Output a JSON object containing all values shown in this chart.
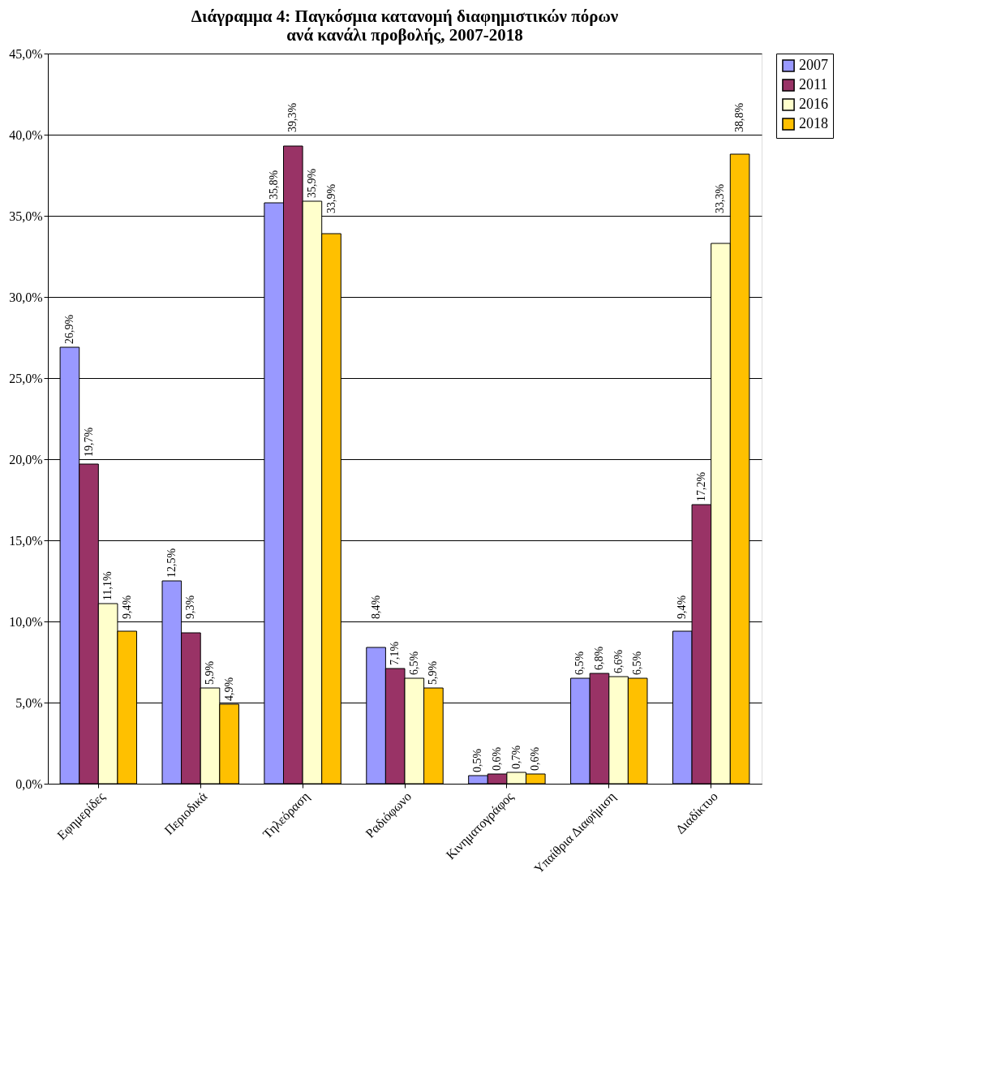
{
  "chart_data": {
    "type": "bar",
    "title": "Διάγραμμα 4: Παγκόσμια κατανομή διαφημιστικών πόρων\nανά κανάλι προβολής, 2007-2018",
    "categories": [
      "Εφημερίδες",
      "Περιοδικά",
      "Τηλεόραση",
      "Ραδιόφωνο",
      "Κινηματογράφος",
      "Υπαίθρια Διαφήμιση",
      "Διαδίκτυο"
    ],
    "series": [
      {
        "name": "2007",
        "color": "#9999ff",
        "values": [
          26.9,
          12.5,
          35.8,
          8.4,
          0.5,
          6.5,
          9.4
        ],
        "value_labels": [
          "26,9%",
          "12,5%",
          "35,8%",
          "8,4%",
          "0,5%",
          "6,5%",
          "9,4%"
        ]
      },
      {
        "name": "2011",
        "color": "#993366",
        "values": [
          19.7,
          9.3,
          39.3,
          7.1,
          0.6,
          6.8,
          17.2
        ],
        "value_labels": [
          "19,7%",
          "9,3%",
          "39,3%",
          "7,1%",
          "0,6%",
          "6,8%",
          "17,2%"
        ]
      },
      {
        "name": "2016",
        "color": "#ffffcc",
        "values": [
          11.1,
          5.9,
          35.9,
          6.5,
          0.7,
          6.6,
          33.3
        ],
        "value_labels": [
          "11,1%",
          "5,9%",
          "35,9%",
          "6,5%",
          "0,7%",
          "6,6%",
          "33,3%"
        ]
      },
      {
        "name": "2018",
        "color": "#ffc000",
        "values": [
          9.4,
          4.9,
          33.9,
          5.9,
          0.6,
          6.5,
          38.8
        ],
        "value_labels": [
          "9,4%",
          "4,9%",
          "33,9%",
          "5,9%",
          "0,6%",
          "6,5%",
          "38,8%"
        ]
      }
    ],
    "ylim": [
      0,
      45
    ],
    "yticks": [
      {
        "value": 0,
        "label": "0,0%"
      },
      {
        "value": 5,
        "label": "5,0%"
      },
      {
        "value": 10,
        "label": "10,0%"
      },
      {
        "value": 15,
        "label": "15,0%"
      },
      {
        "value": 20,
        "label": "20,0%"
      },
      {
        "value": 25,
        "label": "25,0%"
      },
      {
        "value": 30,
        "label": "30,0%"
      },
      {
        "value": 35,
        "label": "35,0%"
      },
      {
        "value": 40,
        "label": "40,0%"
      },
      {
        "value": 45,
        "label": "45,0%"
      }
    ],
    "grid": "y",
    "legend": "right"
  }
}
